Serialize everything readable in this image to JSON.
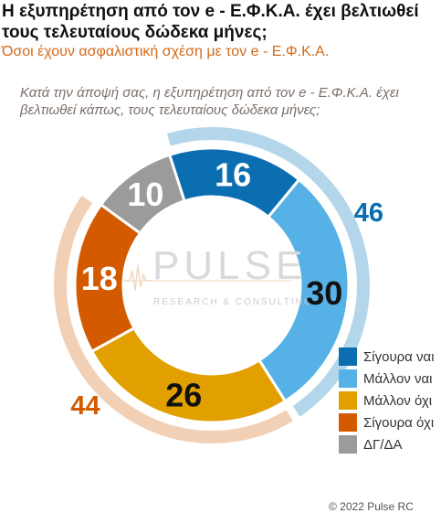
{
  "header": {
    "title": "Η εξυπηρέτηση από τον e - Ε.Φ.Κ.Α. έχει βελτιωθεί τους τελευταίους δώδεκα μήνες;",
    "subtitle": "Όσοι έχουν ασφαλιστική σχέση με τον e - Ε.Φ.Κ.Α.",
    "question": "Κατά την άποψή σας, η εξυπηρέτηση από τον e - Ε.Φ.Κ.Α. έχει βελτιωθεί κάπως, τους τελευταίους δώδεκα μήνες;"
  },
  "watermark": {
    "name": "PULSE",
    "tagline": "RESEARCH & CONSULTING"
  },
  "footer": {
    "copyright": "© 2022 Pulse RC"
  },
  "chart_data": {
    "type": "donut",
    "series": [
      {
        "name": "Σίγουρα ναι",
        "value": 16,
        "color": "#0a6eb0"
      },
      {
        "name": "Μάλλον ναι",
        "value": 30,
        "color": "#56b2e6"
      },
      {
        "name": "Μάλλον όχι",
        "value": 26,
        "color": "#e2a000"
      },
      {
        "name": "Σίγουρα όχι",
        "value": 18,
        "color": "#d45a00"
      },
      {
        "name": "ΔΓ/ΔΑ",
        "value": 10,
        "color": "#9b9b9b"
      }
    ],
    "groups": [
      {
        "value": 46,
        "members": [
          "Σίγουρα ναι",
          "Μάλλον ναι"
        ],
        "ring_color": "#b4d6ea",
        "label_color": "#0a6eb0"
      },
      {
        "value": 44,
        "members": [
          "Μάλλον όχι",
          "Σίγουρα όχι"
        ],
        "ring_color": "#f2d0b6",
        "label_color": "#d45a00"
      }
    ],
    "legend_position": "right"
  }
}
